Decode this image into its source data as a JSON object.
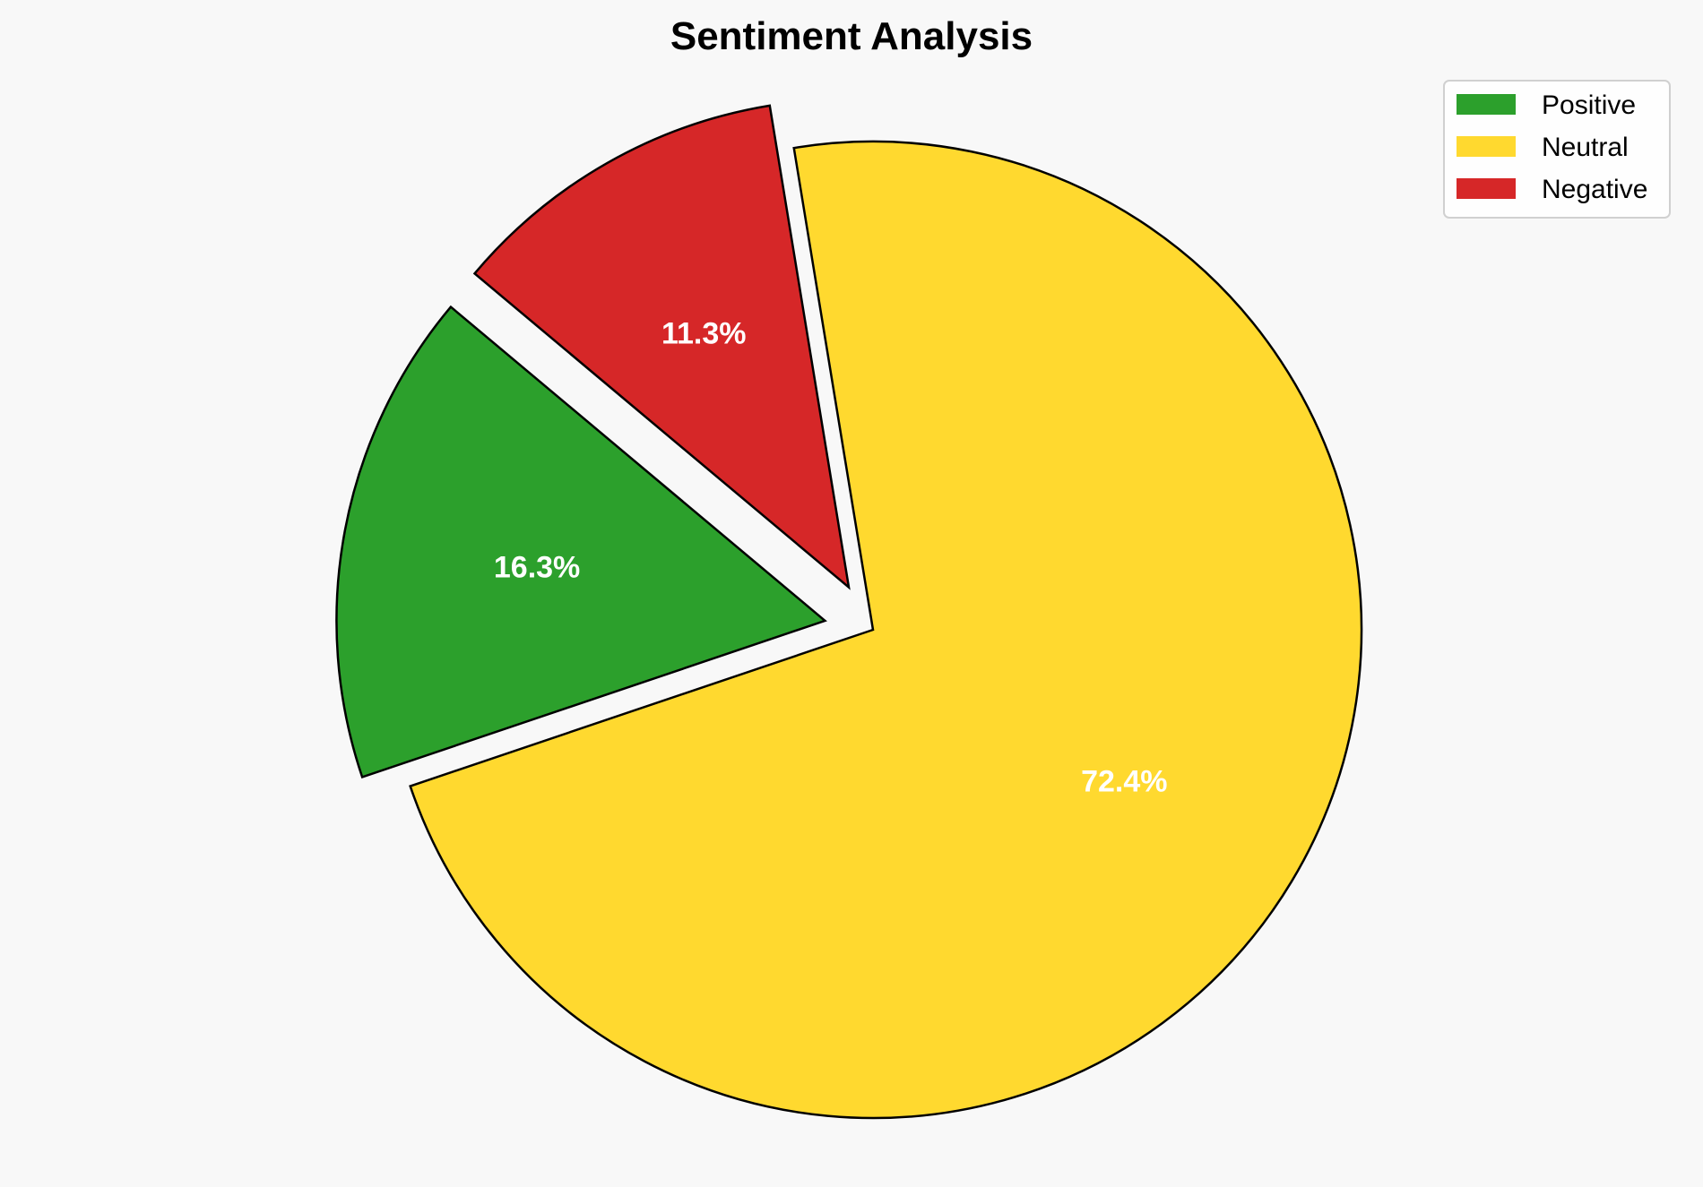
{
  "chart_data": {
    "type": "pie",
    "title": "Sentiment Analysis",
    "categories": [
      "Positive",
      "Neutral",
      "Negative"
    ],
    "values": [
      16.3,
      72.4,
      11.3
    ],
    "labels": [
      "16.3%",
      "72.4%",
      "11.3%"
    ],
    "colors": [
      "#2ca02c",
      "#ffd92f",
      "#d62728"
    ],
    "explode": [
      0.1,
      0,
      0.1
    ],
    "start_angle_deg": 140,
    "edge_color": "#000000",
    "legend_position": "top-right"
  }
}
